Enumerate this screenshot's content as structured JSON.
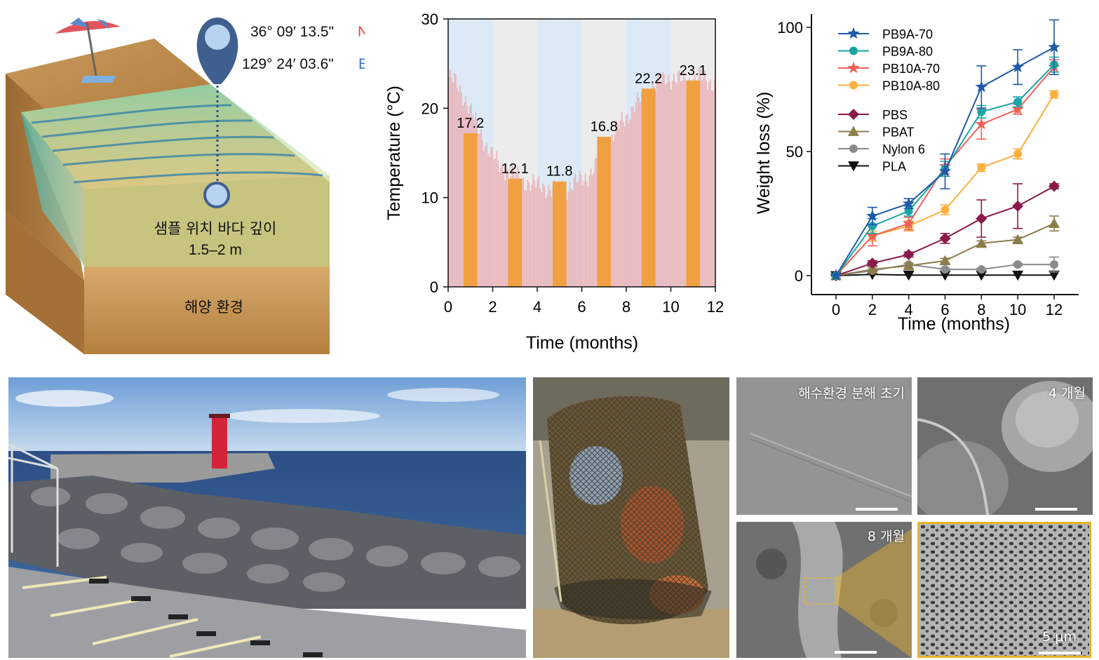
{
  "colors": {
    "ocean_blue": "#1e5aa8",
    "teal": "#1aa5a5",
    "coral": "#f0605a",
    "orange": "#fbb040",
    "maroon": "#8b1a4a",
    "olive": "#8c7d4a",
    "gray": "#8a8a8a",
    "black": "#111111",
    "bar_orange": "#f0a040",
    "daily_pink": "#eab2b7",
    "shade_blue": "#dbeaf6",
    "shade_gray": "#ececec",
    "north_red": "#e8413c",
    "east_blue": "#3b6fc4",
    "highlight_yellow": "#e8b52a"
  },
  "map_panel": {
    "lat_text": "36° 09′ 13.5\"",
    "lat_dir": "N",
    "lon_text": "129° 24′ 03.6\"",
    "lon_dir": "E",
    "depth_label": "샘플 위치 바다 깊이",
    "depth_value": "1.5–2 m",
    "environment_label": "해양 환경",
    "icons": [
      "beach-umbrella-icon",
      "location-pin-icon"
    ]
  },
  "chart_data": [
    {
      "type": "bar",
      "ylabel": "Temperature (°C)",
      "xlabel": "Time (months)",
      "xlim": [
        0,
        12
      ],
      "ylim": [
        0,
        30
      ],
      "xticks": [
        0,
        2,
        4,
        6,
        8,
        10,
        12
      ],
      "yticks": [
        0,
        10,
        20,
        30
      ],
      "bars": [
        {
          "x": 1,
          "value": 17.2,
          "label": "17.2"
        },
        {
          "x": 3,
          "value": 12.1,
          "label": "12.1"
        },
        {
          "x": 5,
          "value": 11.8,
          "label": "11.8"
        },
        {
          "x": 7,
          "value": 16.8,
          "label": "16.8"
        },
        {
          "x": 9,
          "value": 22.2,
          "label": "22.2"
        },
        {
          "x": 11,
          "value": 23.1,
          "label": "23.1"
        }
      ],
      "daily_trace_knots": [
        [
          0,
          23.5
        ],
        [
          0.3,
          23
        ],
        [
          0.8,
          21
        ],
        [
          1.3,
          18
        ],
        [
          1.8,
          15.5
        ],
        [
          2.3,
          13.5
        ],
        [
          2.8,
          12.8
        ],
        [
          3.3,
          12
        ],
        [
          3.8,
          11.5
        ],
        [
          4.3,
          11.2
        ],
        [
          4.8,
          10.8
        ],
        [
          5.3,
          11
        ],
        [
          5.8,
          11.8
        ],
        [
          6.3,
          12.5
        ],
        [
          6.8,
          14
        ],
        [
          7.3,
          16.5
        ],
        [
          7.8,
          18.5
        ],
        [
          8.3,
          20
        ],
        [
          8.8,
          21.5
        ],
        [
          9.3,
          22.5
        ],
        [
          9.8,
          23.5
        ],
        [
          10.3,
          23.2
        ],
        [
          10.8,
          23
        ],
        [
          11.3,
          23.5
        ],
        [
          11.8,
          23
        ],
        [
          12,
          22.8
        ]
      ],
      "shading": [
        {
          "from": 0,
          "to": 2,
          "tone": "blue"
        },
        {
          "from": 2,
          "to": 4,
          "tone": "gray"
        },
        {
          "from": 4,
          "to": 6,
          "tone": "blue"
        },
        {
          "from": 6,
          "to": 8,
          "tone": "gray"
        },
        {
          "from": 8,
          "to": 10,
          "tone": "blue"
        },
        {
          "from": 10,
          "to": 12,
          "tone": "gray"
        }
      ],
      "grid": false
    },
    {
      "type": "line",
      "xlabel": "Time (months)",
      "ylabel": "Weight loss (%)",
      "xlim": [
        0,
        12
      ],
      "ylim": [
        0,
        100
      ],
      "xticks": [
        0,
        2,
        4,
        6,
        8,
        10,
        12
      ],
      "yticks": [
        0,
        50,
        100
      ],
      "legend_position": "top-left",
      "x": [
        0,
        2,
        4,
        6,
        8,
        10,
        12
      ],
      "series": [
        {
          "name": "PB9A-70",
          "marker": "star",
          "color": "#1e5aa8",
          "values": [
            0,
            24,
            29,
            42,
            76,
            84,
            92
          ],
          "err": [
            0,
            3.5,
            2,
            7,
            8.5,
            7,
            11
          ]
        },
        {
          "name": "PB9A-80",
          "marker": "circle",
          "color": "#1aa5a5",
          "values": [
            0,
            20,
            26,
            43,
            66,
            70,
            85
          ],
          "err": [
            0,
            3,
            2,
            3,
            2.5,
            2,
            3
          ]
        },
        {
          "name": "PB10A-70",
          "marker": "star",
          "color": "#f0605a",
          "values": [
            0,
            16,
            21,
            44,
            61,
            67,
            84
          ],
          "err": [
            0,
            4,
            2.5,
            3,
            6,
            2,
            3
          ]
        },
        {
          "name": "PB10A-80",
          "marker": "circle",
          "color": "#fbb040",
          "values": [
            0,
            16,
            20,
            26.5,
            43.5,
            49,
            73
          ],
          "err": [
            0,
            2,
            2,
            2,
            1.5,
            2,
            1.5
          ]
        },
        {
          "name": "PBS",
          "marker": "diamond",
          "color": "#8b1a4a",
          "values": [
            0,
            5,
            8.5,
            15,
            23,
            28,
            36
          ],
          "err": [
            0,
            1,
            1,
            2,
            7.5,
            9,
            1
          ]
        },
        {
          "name": "PBAT",
          "marker": "triangle",
          "color": "#8c7d4a",
          "values": [
            0,
            2.5,
            4,
            6,
            13,
            14.5,
            21
          ],
          "err": [
            0,
            1,
            1,
            1,
            1,
            1,
            3
          ]
        },
        {
          "name": "Nylon 6",
          "marker": "circle",
          "color": "#8a8a8a",
          "values": [
            0,
            2,
            4.5,
            2.5,
            2.5,
            4.5,
            4.5
          ],
          "err": [
            0,
            0.5,
            0.5,
            0.5,
            0.5,
            0.5,
            3
          ]
        },
        {
          "name": "PLA",
          "marker": "triangle-down",
          "color": "#111111",
          "values": [
            0,
            0.5,
            0.2,
            0.2,
            0.2,
            0.2,
            0.2
          ],
          "err": [
            0,
            0,
            0,
            0,
            0,
            0,
            0
          ]
        }
      ]
    }
  ],
  "sem": {
    "initial_label": "해수환경 분해 초기",
    "month4_label": "4 개월",
    "month8_label": "8 개월",
    "scale_label": "5 μm"
  }
}
